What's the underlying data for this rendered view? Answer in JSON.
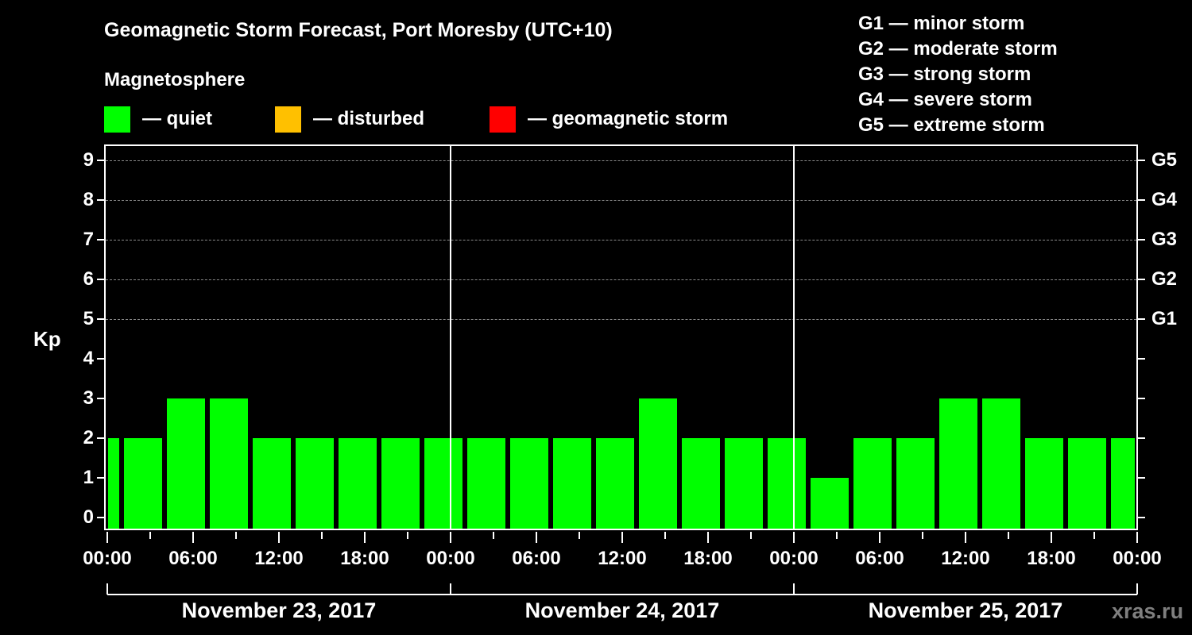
{
  "header": {
    "title": "Geomagnetic Storm Forecast, Port Moresby (UTC+10)",
    "subtitle": "Magnetosphere"
  },
  "legend": [
    {
      "label": "— quiet",
      "color": "#00ff00"
    },
    {
      "label": "— disturbed",
      "color": "#ffc000"
    },
    {
      "label": "— geomagnetic storm",
      "color": "#ff0000"
    }
  ],
  "storm_scale": [
    "G1 — minor storm",
    "G2 — moderate storm",
    "G3 — strong storm",
    "G4 — severe storm",
    "G5 — extreme storm"
  ],
  "axes": {
    "ylabel": "Kp",
    "yticks": [
      "0",
      "1",
      "2",
      "3",
      "4",
      "5",
      "6",
      "7",
      "8",
      "9"
    ],
    "right_labels": [
      {
        "kp": 5,
        "label": "G1"
      },
      {
        "kp": 6,
        "label": "G2"
      },
      {
        "kp": 7,
        "label": "G3"
      },
      {
        "kp": 8,
        "label": "G4"
      },
      {
        "kp": 9,
        "label": "G5"
      }
    ],
    "xticks": [
      "00:00",
      "06:00",
      "12:00",
      "18:00",
      "00:00",
      "06:00",
      "12:00",
      "18:00",
      "00:00",
      "06:00",
      "12:00",
      "18:00",
      "00:00"
    ],
    "days": [
      "November 23, 2017",
      "November 24, 2017",
      "November 25, 2017"
    ]
  },
  "watermark": "xras.ru",
  "chart_data": {
    "type": "bar",
    "title": "Geomagnetic Storm Forecast, Port Moresby (UTC+10)",
    "xlabel": "",
    "ylabel": "Kp",
    "ylim": [
      0,
      9
    ],
    "grid": "dashed horizontal at Kp 5-9",
    "bar_interval_hours": 3,
    "categories": [
      "Nov 23 00:00",
      "Nov 23 01:00",
      "Nov 23 04:00",
      "Nov 23 07:00",
      "Nov 23 10:00",
      "Nov 23 13:00",
      "Nov 23 16:00",
      "Nov 23 19:00",
      "Nov 23 22:00",
      "Nov 24 01:00",
      "Nov 24 04:00",
      "Nov 24 07:00",
      "Nov 24 10:00",
      "Nov 24 13:00",
      "Nov 24 16:00",
      "Nov 24 19:00",
      "Nov 24 22:00",
      "Nov 25 01:00",
      "Nov 25 04:00",
      "Nov 25 07:00",
      "Nov 25 10:00",
      "Nov 25 13:00",
      "Nov 25 16:00",
      "Nov 25 19:00",
      "Nov 25 22:00"
    ],
    "values": [
      2,
      2,
      3,
      3,
      2,
      2,
      2,
      2,
      2,
      2,
      2,
      2,
      2,
      3,
      2,
      2,
      2,
      1,
      2,
      2,
      3,
      3,
      2,
      2,
      2
    ],
    "colors_by_level": {
      "quiet": "#00ff00",
      "disturbed": "#ffc000",
      "storm": "#ff0000"
    },
    "legend": [
      "quiet",
      "disturbed",
      "geomagnetic storm"
    ]
  }
}
